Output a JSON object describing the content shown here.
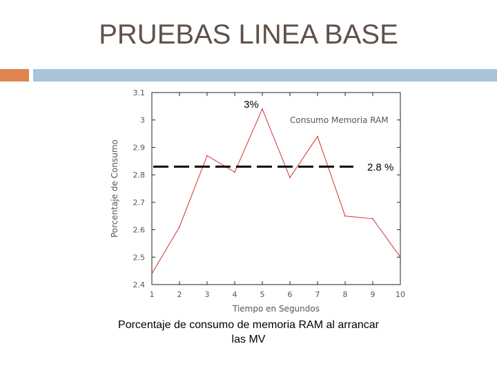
{
  "slide": {
    "title": "PRUEBAS LINEA BASE",
    "caption_line1": "Porcentaje de consumo de memoria RAM al arrancar",
    "caption_line2": "las MV"
  },
  "colors": {
    "title": "#5f5149",
    "accent_orange": "#e0834f",
    "accent_blue": "#a9c3d9",
    "series_line": "#d03030"
  },
  "chart_data": {
    "type": "line",
    "xlabel": "Tiempo en Segundos",
    "ylabel": "Porcentaje de Consumo",
    "xlim": [
      1,
      10
    ],
    "ylim": [
      2.4,
      3.1
    ],
    "x_ticks": [
      "1",
      "2",
      "3",
      "4",
      "5",
      "6",
      "7",
      "8",
      "9",
      "10"
    ],
    "y_ticks": [
      "3.1",
      "3",
      "2.9",
      "2.8",
      "2.7",
      "2.6",
      "2.5",
      "2.4"
    ],
    "legend_text": "Consumo Memoria RAM",
    "legend_placement": "top-right",
    "series": [
      {
        "x": [
          1,
          2,
          3,
          4,
          5,
          6,
          7,
          8,
          9,
          10
        ],
        "values": [
          2.44,
          2.61,
          2.87,
          2.81,
          3.04,
          2.79,
          2.94,
          2.65,
          2.64,
          2.5
        ]
      }
    ],
    "reference_line": {
      "value": 2.83,
      "label": "2.8 %"
    },
    "annotations": [
      {
        "x": 5,
        "y": 3.04,
        "text": "3%"
      }
    ]
  }
}
